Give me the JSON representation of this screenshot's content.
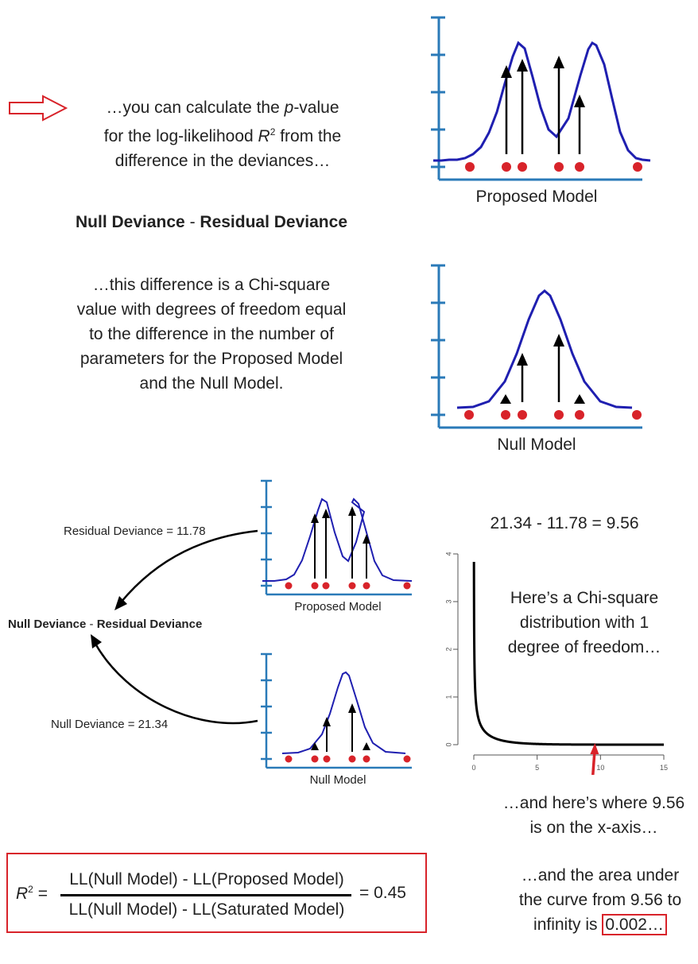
{
  "intro": {
    "before_p": "…you can calculate the ",
    "p": "p",
    "after_p": "-value",
    "line2_pre": "for the log-likelihood ",
    "line2_R": "R",
    "line2_sup": "2",
    "line2_post": " from the",
    "line3": "difference in the deviances…"
  },
  "deviance_heading": {
    "null": "Null Deviance",
    "sep": " - ",
    "residual": "Residual Deviance"
  },
  "chi_text": {
    "line1": "…this difference is a Chi-square",
    "line2": "value with degrees of freedom equal",
    "line3": "to the difference in the number of",
    "line4": "parameters for the Proposed Model",
    "line5": "and the Null Model."
  },
  "panels": {
    "proposed_label": "Proposed Model",
    "null_label": "Null Model"
  },
  "lower_left": {
    "residual_label": "Residual Deviance = 11.78",
    "null_label": "Null Deviance = 21.34",
    "center_null": "Null Deviance",
    "center_sep": " - ",
    "center_residual": "Residual Deviance",
    "small_proposed_label": "Proposed Model",
    "small_null_label": "Null Model"
  },
  "calc": "21.34 - 11.78 = 9.56",
  "chart_data": {
    "type": "line",
    "title": "",
    "xlabel": "",
    "ylabel": "",
    "xlim": [
      0,
      15
    ],
    "ylim": [
      0,
      4
    ],
    "x_ticks": [
      "0",
      "5",
      "10",
      "15"
    ],
    "y_ticks": [
      "0",
      "1",
      "2",
      "3",
      "4"
    ],
    "series": [
      {
        "function": "chi-square density",
        "df": 1
      }
    ],
    "marker_x": 9.56,
    "grid": false,
    "annotation_lines": [
      "Here’s a Chi-square",
      "distribution with 1",
      "degree of freedom…"
    ]
  },
  "marker_text": [
    "…and here’s where 9.56",
    "is on the x-axis…"
  ],
  "area_text": {
    "line1": "…and the area under",
    "line2": "the curve from 9.56 to",
    "line3_pre": "infinity is ",
    "value": "0.002…"
  },
  "formula": {
    "lhs_R": "R",
    "lhs_sup": "2",
    "eq": " =",
    "numerator": "LL(Null Model) - LL(Proposed Model)",
    "denominator": "LL(Null Model) - LL(Saturated Model)",
    "result": "= 0.45"
  },
  "colors": {
    "curve": "#1f1fb0",
    "axis": "#2a7ab8",
    "dot": "#d8232a",
    "arrow_outline": "#d8232a"
  }
}
